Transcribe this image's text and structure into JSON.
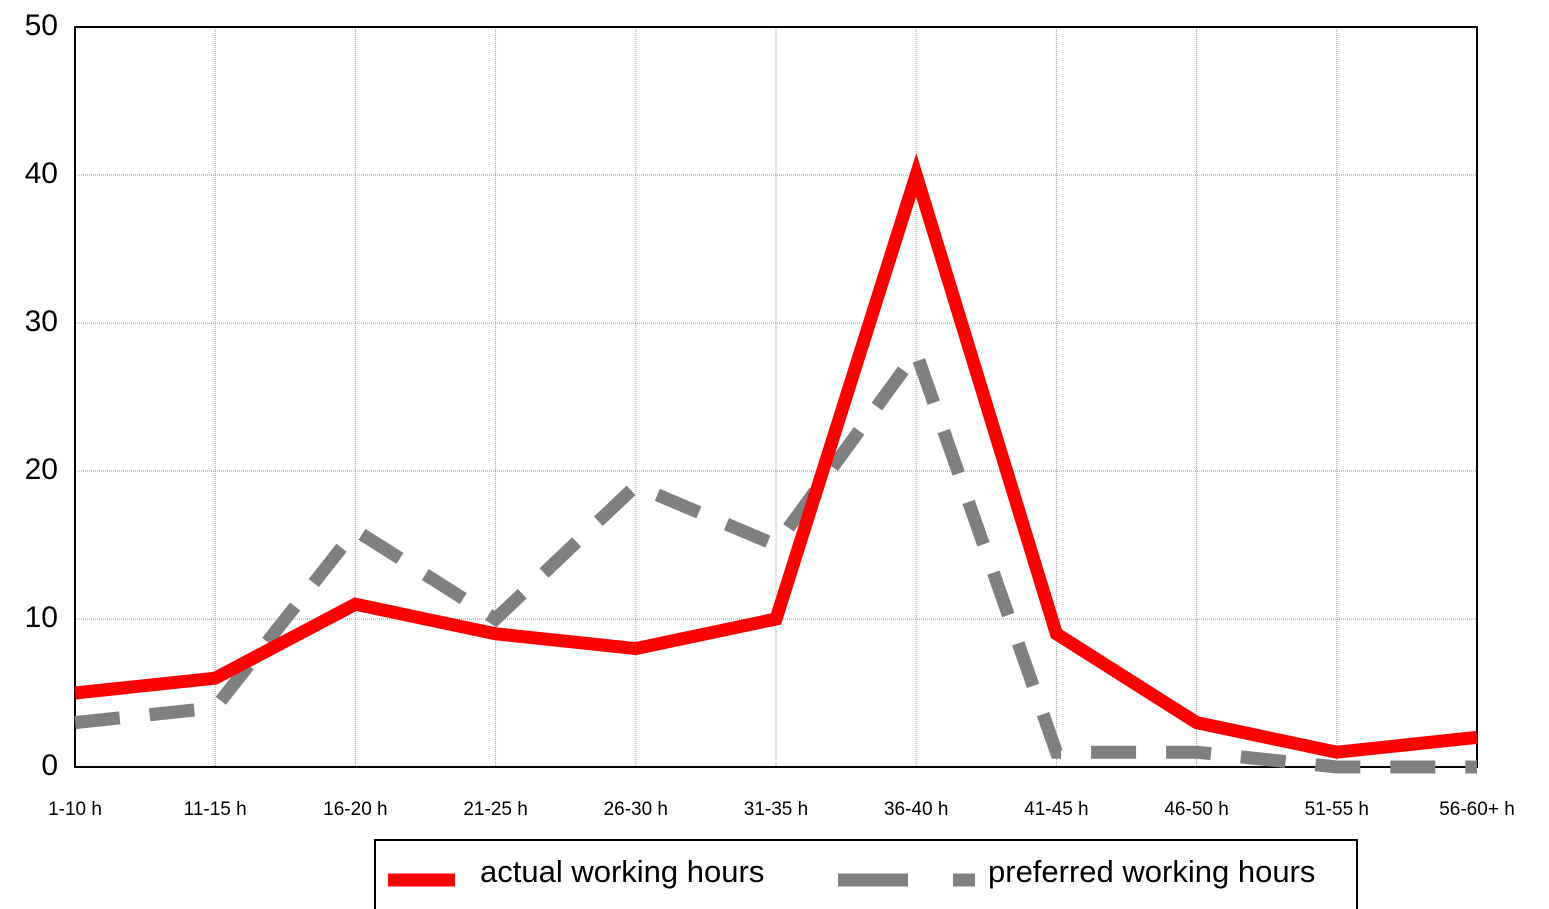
{
  "chart_data": {
    "type": "line",
    "categories": [
      "1-10 h",
      "11-15 h",
      "16-20 h",
      "21-25 h",
      "26-30 h",
      "31-35 h",
      "36-40 h",
      "41-45 h",
      "46-50 h",
      "51-55 h",
      "56-60+ h"
    ],
    "series": [
      {
        "name": "actual working hours",
        "color": "#ff0000",
        "values": [
          5,
          6,
          11,
          9,
          8,
          10,
          40,
          9,
          3,
          1,
          2
        ]
      },
      {
        "name": "preferred working hours",
        "color": "#808080",
        "dashed": true,
        "values": [
          3,
          4,
          16,
          10,
          19,
          15,
          28,
          1,
          1,
          0,
          0
        ]
      }
    ],
    "ylim": [
      0,
      50
    ],
    "yticks": [
      0,
      10,
      20,
      30,
      40,
      50
    ],
    "grid": true
  }
}
